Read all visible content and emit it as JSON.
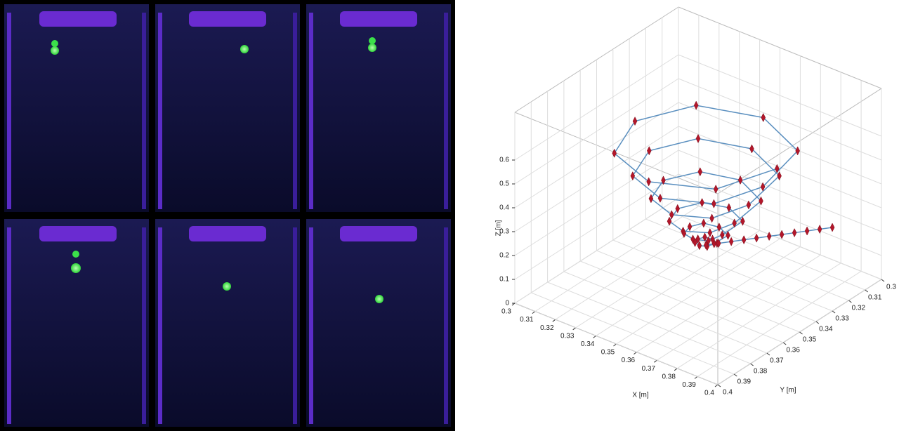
{
  "chart_data": {
    "type": "scatter3d",
    "xlabel": "X [m]",
    "ylabel": "Y [m]",
    "zlabel": "Z [m]",
    "xlim": [
      0.3,
      0.4
    ],
    "ylim": [
      0.3,
      0.4
    ],
    "zlim": [
      0,
      0.8
    ],
    "xticks": [
      0.3,
      0.31,
      0.32,
      0.33,
      0.34,
      0.35,
      0.36,
      0.37,
      0.38,
      0.39,
      0.4
    ],
    "yticks": [
      0.3,
      0.31,
      0.32,
      0.33,
      0.34,
      0.35,
      0.36,
      0.37,
      0.38,
      0.39,
      0.4
    ],
    "zticks": [
      0,
      0.1,
      0.2,
      0.3,
      0.4,
      0.5,
      0.6
    ],
    "grid": true,
    "series": [
      {
        "color": "#b3172b",
        "line_color": "#5a8fbf",
        "x": [
          0.405,
          0.395,
          0.37,
          0.345,
          0.335,
          0.345,
          0.37,
          0.395,
          0.398,
          0.39,
          0.37,
          0.35,
          0.342,
          0.35,
          0.37,
          0.39,
          0.391,
          0.385,
          0.37,
          0.355,
          0.349,
          0.355,
          0.37,
          0.385,
          0.384,
          0.38,
          0.37,
          0.36,
          0.356,
          0.36,
          0.37,
          0.38,
          0.378,
          0.376,
          0.37,
          0.364,
          0.362,
          0.364,
          0.37,
          0.376,
          0.374,
          0.373,
          0.37,
          0.367,
          0.366,
          0.367,
          0.37,
          0.373,
          0.37,
          0.373,
          0.376,
          0.379,
          0.382,
          0.385,
          0.388,
          0.391,
          0.394,
          0.397,
          0.4
        ],
        "y": [
          0.37,
          0.395,
          0.405,
          0.395,
          0.37,
          0.345,
          0.335,
          0.345,
          0.37,
          0.39,
          0.398,
          0.39,
          0.37,
          0.35,
          0.342,
          0.35,
          0.37,
          0.385,
          0.391,
          0.385,
          0.37,
          0.355,
          0.349,
          0.355,
          0.37,
          0.38,
          0.384,
          0.38,
          0.37,
          0.36,
          0.356,
          0.36,
          0.37,
          0.376,
          0.378,
          0.376,
          0.37,
          0.364,
          0.362,
          0.364,
          0.37,
          0.373,
          0.374,
          0.373,
          0.37,
          0.367,
          0.366,
          0.367,
          0.37,
          0.366,
          0.362,
          0.358,
          0.354,
          0.35,
          0.346,
          0.342,
          0.338,
          0.334,
          0.33
        ],
        "z": [
          0.79,
          0.78,
          0.77,
          0.76,
          0.75,
          0.74,
          0.73,
          0.72,
          0.69,
          0.68,
          0.67,
          0.66,
          0.65,
          0.64,
          0.63,
          0.62,
          0.59,
          0.58,
          0.57,
          0.56,
          0.55,
          0.54,
          0.53,
          0.52,
          0.49,
          0.48,
          0.47,
          0.46,
          0.455,
          0.45,
          0.445,
          0.44,
          0.42,
          0.415,
          0.41,
          0.405,
          0.4,
          0.395,
          0.39,
          0.385,
          0.37,
          0.368,
          0.366,
          0.364,
          0.362,
          0.36,
          0.357,
          0.355,
          0.35,
          0.35,
          0.35,
          0.35,
          0.35,
          0.35,
          0.35,
          0.35,
          0.35,
          0.35,
          0.35
        ]
      }
    ]
  }
}
